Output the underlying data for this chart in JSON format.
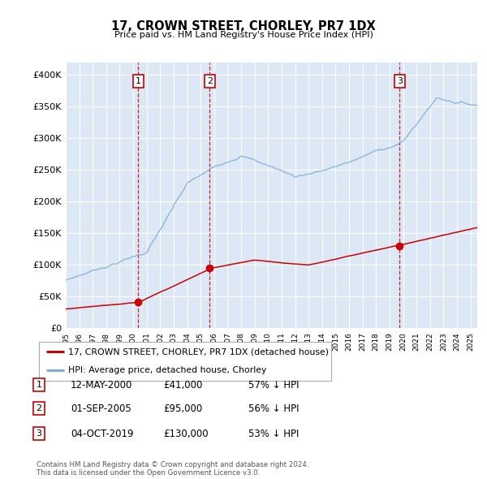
{
  "title": "17, CROWN STREET, CHORLEY, PR7 1DX",
  "subtitle": "Price paid vs. HM Land Registry's House Price Index (HPI)",
  "ylim": [
    0,
    420000
  ],
  "yticks": [
    0,
    50000,
    100000,
    150000,
    200000,
    250000,
    300000,
    350000,
    400000
  ],
  "background_color": "#ffffff",
  "plot_bg_color": "#dce8f5",
  "grid_color": "#ffffff",
  "sale_year_vals": [
    2000.37,
    2005.67,
    2019.75
  ],
  "sale_prices": [
    41000,
    95000,
    130000
  ],
  "sale_labels": [
    "1",
    "2",
    "3"
  ],
  "legend_label_red": "17, CROWN STREET, CHORLEY, PR7 1DX (detached house)",
  "legend_label_blue": "HPI: Average price, detached house, Chorley",
  "table_data": [
    [
      "1",
      "12-MAY-2000",
      "£41,000",
      "57% ↓ HPI"
    ],
    [
      "2",
      "01-SEP-2005",
      "£95,000",
      "56% ↓ HPI"
    ],
    [
      "3",
      "04-OCT-2019",
      "£130,000",
      "53% ↓ HPI"
    ]
  ],
  "footnote": "Contains HM Land Registry data © Crown copyright and database right 2024.\nThis data is licensed under the Open Government Licence v3.0.",
  "red_line_color": "#cc0000",
  "blue_line_color": "#7aadd4",
  "sale_marker_color": "#cc0000",
  "vline_color": "#cc0000",
  "xmin": 1995,
  "xmax": 2025.5
}
